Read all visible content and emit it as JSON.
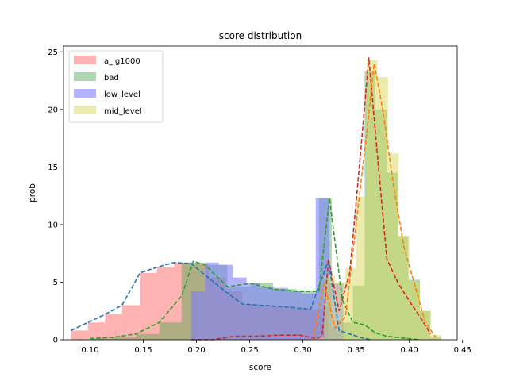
{
  "chart_data": {
    "type": "bar",
    "title": "score distribution",
    "xlabel": "score",
    "ylabel": "prob",
    "xlim": [
      0.075,
      0.445
    ],
    "ylim": [
      0,
      25.5
    ],
    "xticks": [
      0.1,
      0.15,
      0.2,
      0.25,
      0.3,
      0.35,
      0.4,
      0.45
    ],
    "xtick_labels": [
      "0.10",
      "0.15",
      "0.20",
      "0.25",
      "0.30",
      "0.35",
      "0.40",
      "0.45"
    ],
    "yticks": [
      0,
      5,
      10,
      15,
      20,
      25
    ],
    "ytick_labels": [
      "0",
      "5",
      "10",
      "15",
      "20",
      "25"
    ],
    "legend_position": "top-left",
    "series": [
      {
        "name": "a_lg1000",
        "kind": "histogram",
        "color": "#ff7f7f",
        "alpha": 0.6,
        "bin_edges": [
          0.082,
          0.098,
          0.114,
          0.13,
          0.147,
          0.163,
          0.179,
          0.195,
          0.211,
          0.227,
          0.243,
          0.259,
          0.275,
          0.291,
          0.307,
          0.324
        ],
        "values": [
          0.8,
          1.5,
          2.2,
          3.0,
          5.8,
          6.3,
          6.7,
          6.6,
          5.4,
          4.2,
          3.1,
          3.0,
          2.9,
          2.8,
          2.6
        ]
      },
      {
        "name": "bad",
        "kind": "histogram",
        "color": "#4ca64c",
        "alpha": 0.45,
        "bin_edges": [
          0.1,
          0.121,
          0.143,
          0.165,
          0.186,
          0.208,
          0.229,
          0.251,
          0.272,
          0.294,
          0.315,
          0.327,
          0.337,
          0.347,
          0.358,
          0.368,
          0.379,
          0.389,
          0.399,
          0.41,
          0.42,
          0.43
        ],
        "values": [
          0.1,
          0.2,
          0.5,
          1.5,
          6.7,
          6.5,
          4.6,
          4.9,
          4.4,
          4.2,
          12.3,
          0.9,
          1.5,
          4.7,
          23.3,
          20.0,
          14.5,
          9.0,
          5.2,
          2.5,
          0.2
        ]
      },
      {
        "name": "low_level",
        "kind": "histogram",
        "color": "#7f7fff",
        "alpha": 0.6,
        "bin_edges": [
          0.195,
          0.208,
          0.221,
          0.234,
          0.247,
          0.26,
          0.273,
          0.286,
          0.299,
          0.312,
          0.325,
          0.338
        ],
        "values": [
          4.2,
          6.7,
          6.5,
          5.4,
          4.9,
          4.6,
          4.5,
          4.2,
          4.0,
          12.3,
          4.9
        ]
      },
      {
        "name": "mid_level",
        "kind": "histogram",
        "color": "#d8d85c",
        "alpha": 0.5,
        "bin_edges": [
          0.31,
          0.32,
          0.33,
          0.34,
          0.35,
          0.36,
          0.37,
          0.38,
          0.39,
          0.4,
          0.41,
          0.42,
          0.43
        ],
        "values": [
          0.2,
          5.5,
          5.0,
          6.2,
          12.4,
          24.3,
          22.8,
          16.2,
          9.0,
          5.0,
          2.5,
          0.4
        ]
      }
    ],
    "curves": [
      {
        "color": "#1f77b4",
        "x": [
          0.082,
          0.098,
          0.114,
          0.13,
          0.147,
          0.163,
          0.179,
          0.195,
          0.211,
          0.227,
          0.243,
          0.259,
          0.275,
          0.291,
          0.307,
          0.324,
          0.334,
          0.344,
          0.354,
          0.364
        ],
        "y": [
          0.8,
          1.5,
          2.2,
          3.0,
          5.8,
          6.3,
          6.7,
          6.6,
          5.4,
          4.2,
          3.1,
          3.0,
          2.9,
          2.8,
          2.6,
          6.9,
          0.8,
          0.5,
          0.2,
          0.0
        ]
      },
      {
        "color": "#2ca02c",
        "x": [
          0.1,
          0.121,
          0.143,
          0.165,
          0.186,
          0.197,
          0.208,
          0.229,
          0.251,
          0.272,
          0.294,
          0.315,
          0.325,
          0.337,
          0.347,
          0.358,
          0.368,
          0.379,
          0.389,
          0.399,
          0.41
        ],
        "y": [
          0.1,
          0.2,
          0.5,
          1.5,
          3.8,
          6.8,
          6.5,
          4.6,
          4.9,
          4.4,
          4.2,
          4.2,
          12.3,
          3.5,
          1.5,
          1.3,
          0.6,
          0.3,
          0.2,
          0.1,
          0.0
        ]
      },
      {
        "color": "#d62728",
        "x": [
          0.195,
          0.215,
          0.236,
          0.256,
          0.277,
          0.297,
          0.313,
          0.318,
          0.324,
          0.334,
          0.344,
          0.354,
          0.362,
          0.37,
          0.379,
          0.389,
          0.399,
          0.41,
          0.42
        ],
        "y": [
          0.0,
          0.0,
          0.3,
          0.3,
          0.4,
          0.4,
          0.1,
          0.3,
          7.0,
          2.5,
          5.8,
          16.0,
          24.5,
          16.0,
          7.0,
          5.0,
          3.5,
          2.0,
          0.5
        ]
      },
      {
        "color": "#ff7f0e",
        "x": [
          0.31,
          0.32,
          0.33,
          0.34,
          0.35,
          0.36,
          0.367,
          0.375,
          0.385,
          0.395,
          0.405,
          0.415,
          0.425
        ],
        "y": [
          0.2,
          5.0,
          1.0,
          2.0,
          10.0,
          18.0,
          24.0,
          20.0,
          13.5,
          8.0,
          4.8,
          1.5,
          0.2
        ]
      }
    ]
  }
}
